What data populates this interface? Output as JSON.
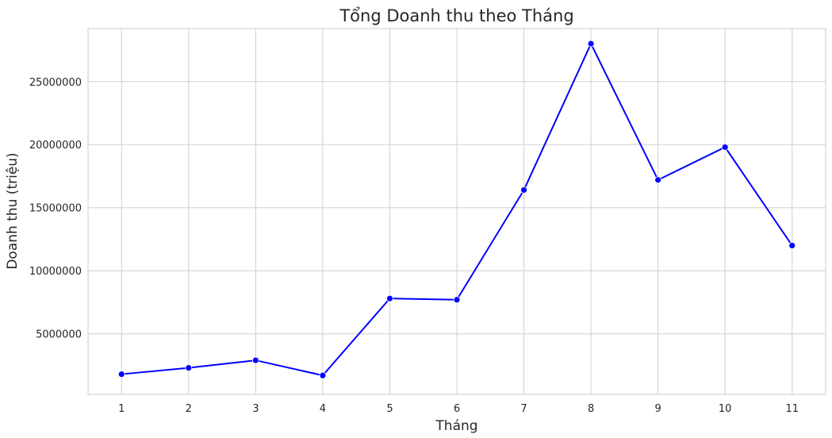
{
  "chart_data": {
    "type": "line",
    "title": "Tổng Doanh thu theo Tháng",
    "xlabel": "Tháng",
    "ylabel": "Doanh thu (triệu)",
    "x": [
      1,
      2,
      3,
      4,
      5,
      6,
      7,
      8,
      9,
      10,
      11
    ],
    "x_tick_labels": [
      "1",
      "2",
      "3",
      "4",
      "5",
      "6",
      "7",
      "8",
      "9",
      "10",
      "11"
    ],
    "y_ticks": [
      5000000,
      10000000,
      15000000,
      20000000,
      25000000
    ],
    "y_tick_labels": [
      "5000000",
      "10000000",
      "15000000",
      "20000000",
      "25000000"
    ],
    "xlim": [
      0.5,
      11.5
    ],
    "ylim": [
      200000,
      29200000
    ],
    "grid": true,
    "series": [
      {
        "values": [
          1800000,
          2300000,
          2900000,
          1700000,
          7800000,
          7700000,
          16400000,
          28000000,
          17200000,
          19800000,
          12000000
        ],
        "color": "#0000ff",
        "marker": "circle"
      }
    ]
  }
}
